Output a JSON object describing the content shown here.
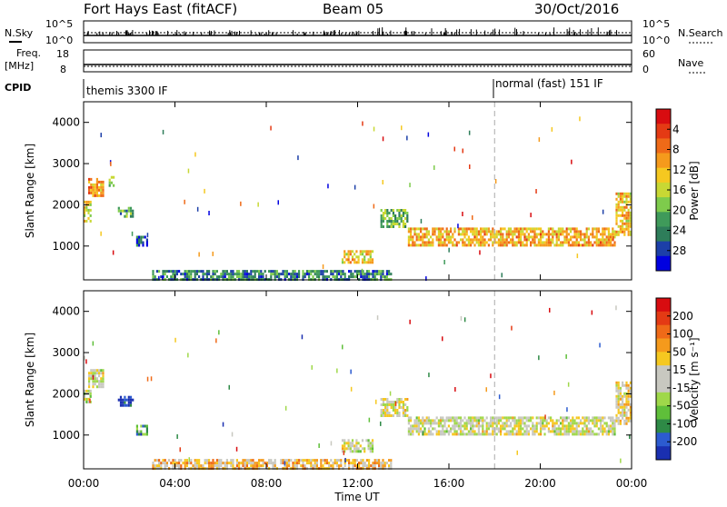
{
  "header": {
    "station": "Fort Hays East (fitACF)",
    "beam": "Beam 05",
    "date": "30/Oct/2016"
  },
  "aux_panels": {
    "nsky_label": "N.Sky",
    "nsky_ticks": [
      "10^5",
      "10^0"
    ],
    "nsearch_label": "N.Search",
    "nsearch_ticks": [
      "10^5",
      "10^0"
    ],
    "freq_label_line1": "Freq.",
    "freq_label_line2": "[MHz]",
    "freq_ticks": [
      "18",
      "8"
    ],
    "nave_label": "Nave",
    "nave_ticks": [
      "60",
      "0"
    ],
    "cpid_label": "CPID",
    "cpid_segments": [
      {
        "text": "themis 3300 IF",
        "start_hour": 0
      },
      {
        "text": "normal (fast) 151 IF",
        "start_hour": 18
      }
    ]
  },
  "time_axis": {
    "label": "Time UT",
    "ticks": [
      "00:00",
      "04:00",
      "08:00",
      "12:00",
      "16:00",
      "20:00",
      "00:00"
    ],
    "range_hours": [
      0,
      24
    ]
  },
  "chart_data": [
    {
      "type": "heatmap",
      "name": "power",
      "ylabel": "Slant Range [km]",
      "yticks": [
        1000,
        2000,
        3000,
        4000
      ],
      "ylim": [
        180,
        4500
      ],
      "xlim": [
        0,
        24
      ],
      "colorbar": {
        "label": "Power [dB]",
        "ticks": [
          "4",
          "8",
          "12",
          "16",
          "20",
          "24",
          "28"
        ],
        "colors": [
          "#0000e0",
          "#1c3fa8",
          "#2e7d5a",
          "#3f9a5a",
          "#7ecb4c",
          "#c8d834",
          "#f5c820",
          "#f59a1c",
          "#ef6a18",
          "#e43a14",
          "#d80c10"
        ]
      },
      "regions": [
        {
          "t0": 0.0,
          "t1": 0.35,
          "r0": 1600,
          "r1": 2100,
          "level": 0.55
        },
        {
          "t0": 0.2,
          "t1": 0.9,
          "r0": 2250,
          "r1": 2650,
          "level": 0.7
        },
        {
          "t0": 1.1,
          "t1": 1.35,
          "r0": 2450,
          "r1": 2700,
          "level": 0.5
        },
        {
          "t0": 1.5,
          "t1": 2.2,
          "r0": 1700,
          "r1": 1950,
          "level": 0.3
        },
        {
          "t0": 2.3,
          "t1": 2.8,
          "r0": 1050,
          "r1": 1250,
          "level": 0.15
        },
        {
          "t0": 11.3,
          "t1": 12.7,
          "r0": 600,
          "r1": 900,
          "level": 0.6
        },
        {
          "t0": 13.0,
          "t1": 14.2,
          "r0": 1500,
          "r1": 1900,
          "level": 0.35
        },
        {
          "t0": 14.2,
          "t1": 23.3,
          "r0": 1000,
          "r1": 1450,
          "level": 0.65
        },
        {
          "t0": 23.3,
          "t1": 24.0,
          "r0": 1300,
          "r1": 2300,
          "level": 0.6
        },
        {
          "t0": 3.0,
          "t1": 13.5,
          "r0": 200,
          "r1": 420,
          "level": 0.25
        }
      ]
    },
    {
      "type": "heatmap",
      "name": "velocity",
      "ylabel": "Slant Range [km]",
      "yticks": [
        1000,
        2000,
        3000,
        4000
      ],
      "ylim": [
        180,
        4500
      ],
      "xlim": [
        0,
        24
      ],
      "colorbar": {
        "label": "Velocity [m s⁻¹]",
        "ticks": [
          "200",
          "100",
          "50",
          "15",
          "-15",
          "-50",
          "-100",
          "-200"
        ],
        "colors": [
          "#1a2fb0",
          "#2c5bd0",
          "#2e8a46",
          "#5fbf3a",
          "#9fd84a",
          "#c8c8c0",
          "#c8c8c0",
          "#f5c820",
          "#f59a1c",
          "#ef6a18",
          "#e43a14",
          "#d80c10"
        ]
      },
      "regions": [
        {
          "t0": 0.0,
          "t1": 0.35,
          "r0": 1800,
          "r1": 2100,
          "level": 0.45
        },
        {
          "t0": 0.2,
          "t1": 0.9,
          "r0": 2200,
          "r1": 2600,
          "level": 0.5
        },
        {
          "t0": 1.5,
          "t1": 2.2,
          "r0": 1700,
          "r1": 1950,
          "level": 0.05
        },
        {
          "t0": 2.3,
          "t1": 2.8,
          "r0": 1050,
          "r1": 1250,
          "level": 0.25
        },
        {
          "t0": 11.3,
          "t1": 12.7,
          "r0": 600,
          "r1": 900,
          "level": 0.5
        },
        {
          "t0": 13.0,
          "t1": 14.2,
          "r0": 1500,
          "r1": 1900,
          "level": 0.5
        },
        {
          "t0": 14.2,
          "t1": 23.3,
          "r0": 1000,
          "r1": 1450,
          "level": 0.5
        },
        {
          "t0": 23.3,
          "t1": 24.0,
          "r0": 1300,
          "r1": 2300,
          "level": 0.55
        },
        {
          "t0": 3.0,
          "t1": 13.5,
          "r0": 200,
          "r1": 420,
          "level": 0.62
        }
      ]
    }
  ]
}
